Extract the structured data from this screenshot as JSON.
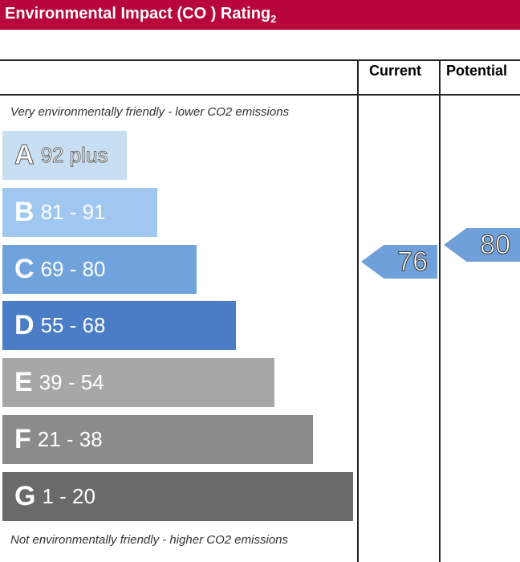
{
  "header": {
    "title": "Environmental Impact (CO ) Rating",
    "subscript": "2"
  },
  "columns": {
    "current": "Current",
    "potential": "Potential"
  },
  "notes": {
    "top": "Very environmentally friendly - lower CO2 emissions",
    "bottom": "Not environmentally friendly - higher CO2 emissions"
  },
  "chart_data": {
    "type": "bar",
    "categories": [
      "A",
      "B",
      "C",
      "D",
      "E",
      "F",
      "G"
    ],
    "ranges": [
      "92 plus",
      "81 - 91",
      "69 - 80",
      "55 - 68",
      "39 - 54",
      "21 - 38",
      "1 - 20"
    ],
    "colors": [
      "#c8dff3",
      "#9fc7f0",
      "#70a3dc",
      "#4a7dc5",
      "#a7a7a7",
      "#8b8b8b",
      "#6a6a6a"
    ],
    "current": {
      "value": "76",
      "band": "C",
      "color": "#6fa0d9"
    },
    "potential": {
      "value": "80",
      "band": "C",
      "color": "#6fa0d9"
    }
  }
}
